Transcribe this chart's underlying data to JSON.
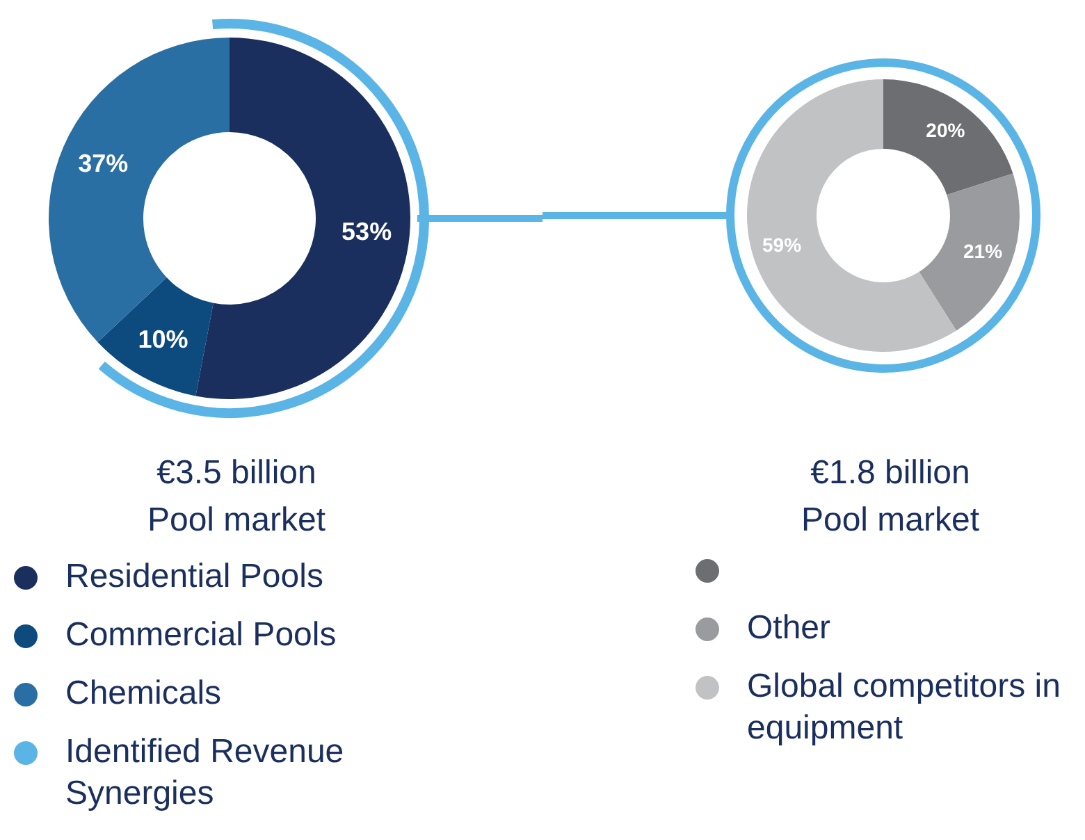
{
  "chart_data": [
    {
      "type": "donut",
      "title": "€3.5 billion\nPool market",
      "categories": [
        "Residential Pools",
        "Commercial Pools",
        "Chemicals",
        "Identified Revenue Synergies"
      ],
      "values": [
        53,
        10,
        37,
        null
      ],
      "colors": [
        "#1b2f5e",
        "#0d4a7e",
        "#2a6fa3",
        "#5ab4e5"
      ],
      "value_labels": [
        "53%",
        "10%",
        "37%",
        null
      ],
      "legend": "bottom"
    },
    {
      "type": "donut",
      "title": "€1.8 billion\nPool market",
      "categories": [
        null,
        "Other",
        "Global competitors in equipment"
      ],
      "values": [
        20,
        21,
        59
      ],
      "colors": [
        "#6d6e71",
        "#9a9b9e",
        "#c1c2c4"
      ],
      "value_labels": [
        "20%",
        "21%",
        "59%"
      ],
      "legend": "bottom"
    }
  ]
}
